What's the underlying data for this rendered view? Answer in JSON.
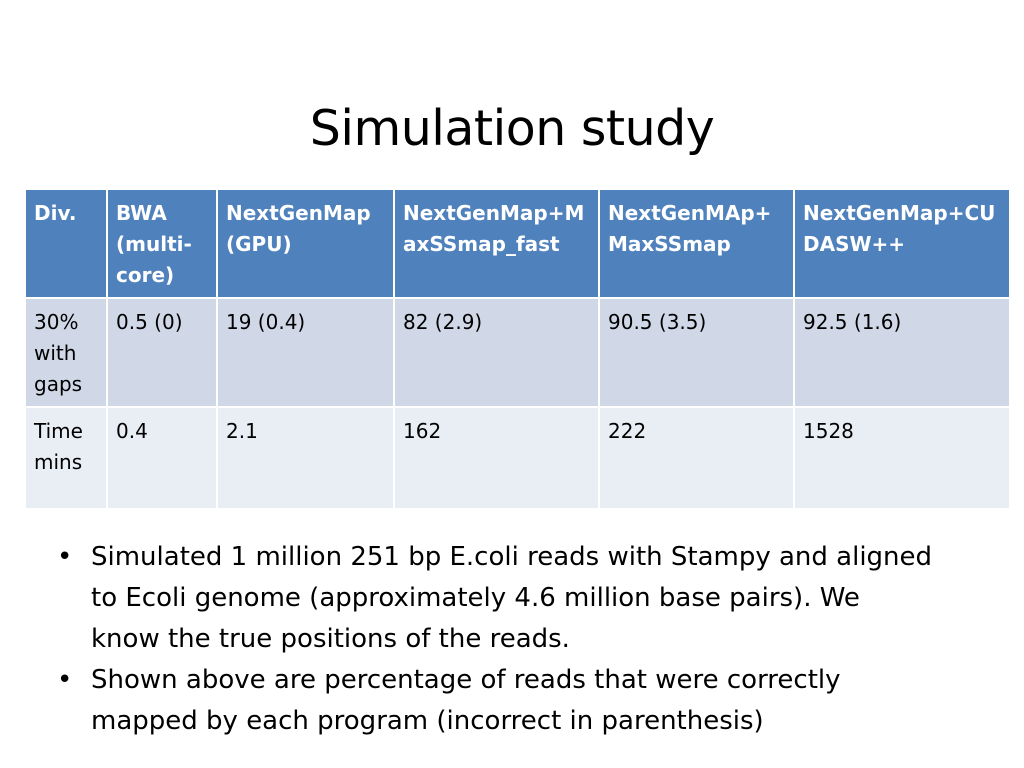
{
  "slide": {
    "title": "Simulation study"
  },
  "table": {
    "headers": [
      "Div.",
      "BWA (multi-core)",
      "NextGenMap (GPU)",
      "NextGenMap+MaxSSmap_fast",
      "NextGenMAp+ MaxSSmap",
      "NextGenMap+CUDASW++"
    ],
    "rows": [
      [
        "30% with gaps",
        "0.5 (0)",
        "19 (0.4)",
        "82 (2.9)",
        "90.5 (3.5)",
        "92.5 (1.6)"
      ],
      [
        "Time mins",
        "0.4",
        "2.1",
        "162",
        "222",
        "1528"
      ]
    ]
  },
  "bullets": [
    "Simulated 1 million 251 bp E.coli reads with Stampy and aligned to Ecoli genome (approximately 4.6 million base pairs). We know the true positions of the reads.",
    "Shown above are percentage of reads that were correctly mapped by each program (incorrect in parenthesis)"
  ],
  "colors": {
    "header_bg": "#4f81bd",
    "row_odd_bg": "#d0d8e8",
    "row_even_bg": "#e9edf4"
  }
}
